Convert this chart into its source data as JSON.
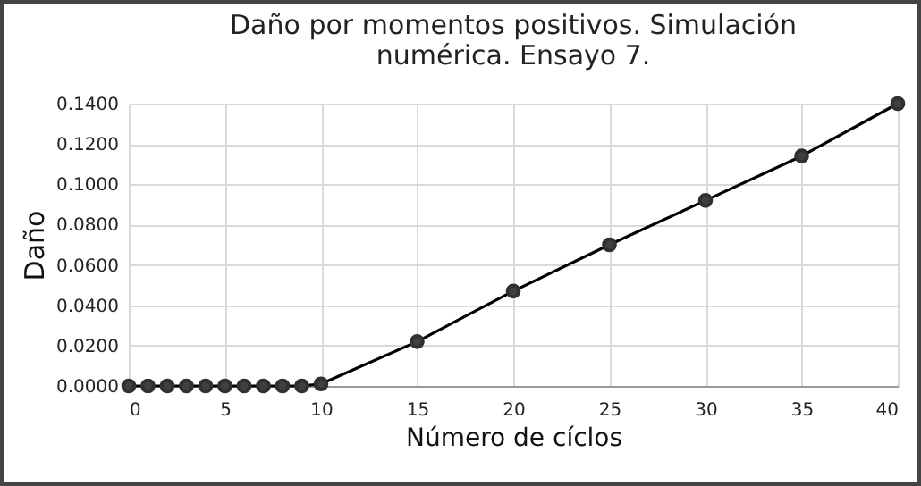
{
  "chart_data": {
    "type": "line",
    "title": [
      "Daño por momentos positivos. Simulación",
      "numérica. Ensayo 7."
    ],
    "xlabel": "Número de cíclos",
    "ylabel": "Daño",
    "x": [
      0,
      1,
      2,
      3,
      4,
      5,
      6,
      7,
      8,
      9,
      10,
      15,
      20,
      25,
      30,
      35,
      40
    ],
    "series": [
      {
        "color": "#000000",
        "values": [
          0,
          0,
          0,
          0,
          0,
          0,
          0,
          0,
          0,
          0,
          0.001,
          0.022,
          0.047,
          0.07,
          0.092,
          0.114,
          0.14
        ]
      }
    ],
    "xlim": [
      0,
      40
    ],
    "xticks": [
      0,
      5,
      10,
      15,
      20,
      25,
      30,
      35,
      40
    ],
    "ylim": [
      0,
      0.14
    ],
    "yticks": [
      {
        "value": 0,
        "label": "0.0000"
      },
      {
        "value": 0.02,
        "label": "0.0200"
      },
      {
        "value": 0.04,
        "label": "0.0400"
      },
      {
        "value": 0.06,
        "label": "0.0600"
      },
      {
        "value": 0.08,
        "label": "0.0800"
      },
      {
        "value": 0.1,
        "label": "0.1000"
      },
      {
        "value": 0.12,
        "label": "0.1200"
      },
      {
        "value": 0.14,
        "label": "0.1400"
      }
    ],
    "grid": true,
    "marker": "circle",
    "line_style": "solid",
    "legend": false
  }
}
